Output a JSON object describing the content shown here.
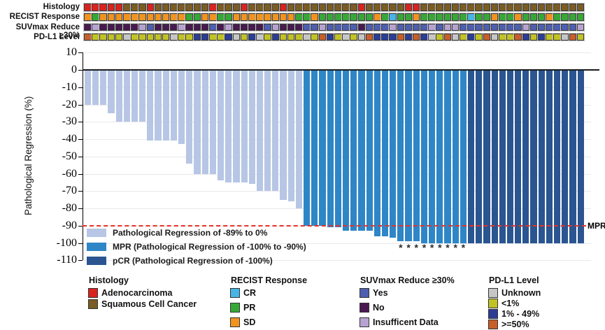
{
  "tracks": {
    "rows": [
      {
        "label": "Histology",
        "key": "histology"
      },
      {
        "label": "RECIST Response",
        "key": "recist"
      },
      {
        "label": "SUVmax Reduce ≥30%",
        "key": "suvmax"
      },
      {
        "label": "PD-L1 Level",
        "key": "pdl1"
      }
    ],
    "histology": [
      "A",
      "A",
      "A",
      "A",
      "A",
      "S",
      "S",
      "S",
      "A",
      "S",
      "S",
      "S",
      "S",
      "S",
      "S",
      "S",
      "A",
      "S",
      "S",
      "S",
      "A",
      "S",
      "S",
      "S",
      "S",
      "A",
      "S",
      "S",
      "S",
      "S",
      "S",
      "S",
      "S",
      "S",
      "S",
      "A",
      "S",
      "S",
      "S",
      "S",
      "S",
      "A",
      "A",
      "S",
      "S",
      "S",
      "S",
      "S",
      "S",
      "S",
      "S",
      "S",
      "S",
      "S",
      "S",
      "S",
      "S",
      "S",
      "S",
      "S",
      "S",
      "S",
      "S",
      "S"
    ],
    "recist": [
      "O",
      "P",
      "O",
      "O",
      "O",
      "O",
      "O",
      "O",
      "O",
      "O",
      "O",
      "O",
      "O",
      "P",
      "P",
      "O",
      "O",
      "P",
      "P",
      "O",
      "O",
      "O",
      "O",
      "O",
      "O",
      "O",
      "O",
      "P",
      "P",
      "O",
      "P",
      "P",
      "P",
      "P",
      "P",
      "P",
      "P",
      "O",
      "P",
      "C",
      "P",
      "P",
      "O",
      "P",
      "P",
      "P",
      "P",
      "P",
      "P",
      "C",
      "P",
      "P",
      "O",
      "P",
      "P",
      "O",
      "P",
      "P",
      "P",
      "O",
      "P",
      "P",
      "P",
      "P"
    ],
    "suvmax": [
      "N",
      "I",
      "N",
      "N",
      "N",
      "N",
      "N",
      "I",
      "Y",
      "N",
      "N",
      "N",
      "I",
      "N",
      "N",
      "N",
      "Y",
      "N",
      "I",
      "N",
      "N",
      "N",
      "N",
      "Y",
      "I",
      "N",
      "N",
      "N",
      "Y",
      "Y",
      "I",
      "Y",
      "Y",
      "Y",
      "Y",
      "N",
      "Y",
      "Y",
      "Y",
      "I",
      "Y",
      "Y",
      "Y",
      "Y",
      "I",
      "Y",
      "I",
      "I",
      "Y",
      "Y",
      "Y",
      "Y",
      "Y",
      "Y",
      "Y",
      "Y",
      "I",
      "Y",
      "Y",
      "Y",
      "Y",
      "Y",
      "Y",
      "I"
    ],
    "pdl1": [
      "H",
      "L",
      "L",
      "L",
      "L",
      "U",
      "L",
      "L",
      "L",
      "L",
      "L",
      "U",
      "L",
      "L",
      "M",
      "M",
      "L",
      "L",
      "M",
      "U",
      "L",
      "M",
      "U",
      "L",
      "M",
      "L",
      "L",
      "L",
      "U",
      "L",
      "H",
      "M",
      "L",
      "U",
      "L",
      "U",
      "H",
      "M",
      "M",
      "M",
      "H",
      "M",
      "H",
      "M",
      "U",
      "L",
      "H",
      "U",
      "L",
      "M",
      "L",
      "H",
      "U",
      "L",
      "L",
      "H",
      "M",
      "L",
      "M",
      "L",
      "L",
      "U",
      "H",
      "L"
    ],
    "palette": {
      "A": "#d8231f",
      "S": "#7a5c24",
      "O": "#f0941f",
      "P": "#37a837",
      "C": "#45b5e6",
      "Y": "#4d5fae",
      "N": "#491a51",
      "I": "#b7a3d2",
      "U": "#c6c6c6",
      "L": "#c1c226",
      "M": "#2c3d94",
      "H": "#c75f2b"
    }
  },
  "chart_data": {
    "type": "bar",
    "title": "",
    "xlabel": "",
    "ylabel": "Pathological Regression (%)",
    "ylim": [
      -110,
      10
    ],
    "yticks": [
      10,
      0,
      -10,
      -20,
      -30,
      -40,
      -50,
      -60,
      -70,
      -80,
      -90,
      -100,
      -110
    ],
    "grid": true,
    "values": [
      -20,
      -20,
      -20,
      -25,
      -30,
      -30,
      -30,
      -30,
      -41,
      -41,
      -41,
      -41,
      -43,
      -54,
      -60,
      -60,
      -60,
      -64,
      -65,
      -65,
      -65,
      -66,
      -70,
      -70,
      -70,
      -75,
      -76,
      -80,
      -90,
      -90,
      -90,
      -91,
      -91,
      -93,
      -93,
      -93,
      -93,
      -96,
      -96,
      -97,
      -99,
      -99,
      -99,
      -100,
      -100,
      -100,
      -100,
      -100,
      -100,
      -100,
      -100,
      -100,
      -100,
      -100,
      -100,
      -100,
      -100,
      -100,
      -100,
      -100,
      -100,
      -100,
      -100,
      -100
    ],
    "bar_category": [
      "PR",
      "PR",
      "PR",
      "PR",
      "PR",
      "PR",
      "PR",
      "PR",
      "PR",
      "PR",
      "PR",
      "PR",
      "PR",
      "PR",
      "PR",
      "PR",
      "PR",
      "PR",
      "PR",
      "PR",
      "PR",
      "PR",
      "PR",
      "PR",
      "PR",
      "PR",
      "PR",
      "PR",
      "MPR",
      "MPR",
      "MPR",
      "MPR",
      "MPR",
      "MPR",
      "MPR",
      "MPR",
      "MPR",
      "MPR",
      "MPR",
      "MPR",
      "MPR",
      "MPR",
      "MPR",
      "MPR",
      "MPR",
      "MPR",
      "MPR",
      "MPR",
      "MPR",
      "pCR",
      "pCR",
      "pCR",
      "pCR",
      "pCR",
      "pCR",
      "pCR",
      "pCR",
      "pCR",
      "pCR",
      "pCR",
      "pCR",
      "pCR",
      "pCR",
      "pCR"
    ],
    "bar_colors": {
      "PR": "#b7c6e5",
      "MPR": "#2e86c7",
      "pCR": "#2a5590"
    },
    "mpr_line": {
      "value": -90,
      "label": "MPR",
      "color": "#e73127"
    },
    "asterisk_bars": [
      41,
      42,
      43,
      44,
      45,
      46,
      47,
      48,
      49
    ],
    "asterisk_char": "*",
    "legend": [
      {
        "label": "Pathological Regression of -89% to 0%",
        "category": "PR"
      },
      {
        "label": "MPR (Pathological Regression of -100% to -90%)",
        "category": "MPR"
      },
      {
        "label": "pCR (Pathological Regression of -100%)",
        "category": "pCR"
      }
    ]
  },
  "legends": [
    {
      "title": "Histology",
      "items": [
        {
          "label": "Adenocarcinoma",
          "color": "#d8231f"
        },
        {
          "label": "Squamous Cell Cancer",
          "color": "#7a5c24"
        }
      ]
    },
    {
      "title": "RECIST Response",
      "items": [
        {
          "label": "CR",
          "color": "#45b5e6"
        },
        {
          "label": "PR",
          "color": "#37a837"
        },
        {
          "label": "SD",
          "color": "#f0941f"
        }
      ]
    },
    {
      "title": "SUVmax Reduce ≥30%",
      "items": [
        {
          "label": "Yes",
          "color": "#4d5fae"
        },
        {
          "label": "No",
          "color": "#491a51"
        },
        {
          "label": "Insufficent Data",
          "color": "#b7a3d2"
        }
      ]
    },
    {
      "title": "PD-L1 Level",
      "items": [
        {
          "label": "Unknown",
          "color": "#c6c6c6"
        },
        {
          "label": "<1%",
          "color": "#c1c226"
        },
        {
          "label": "1% - 49%",
          "color": "#2c3d94"
        },
        {
          "label": ">=50%",
          "color": "#c75f2b"
        }
      ]
    }
  ]
}
